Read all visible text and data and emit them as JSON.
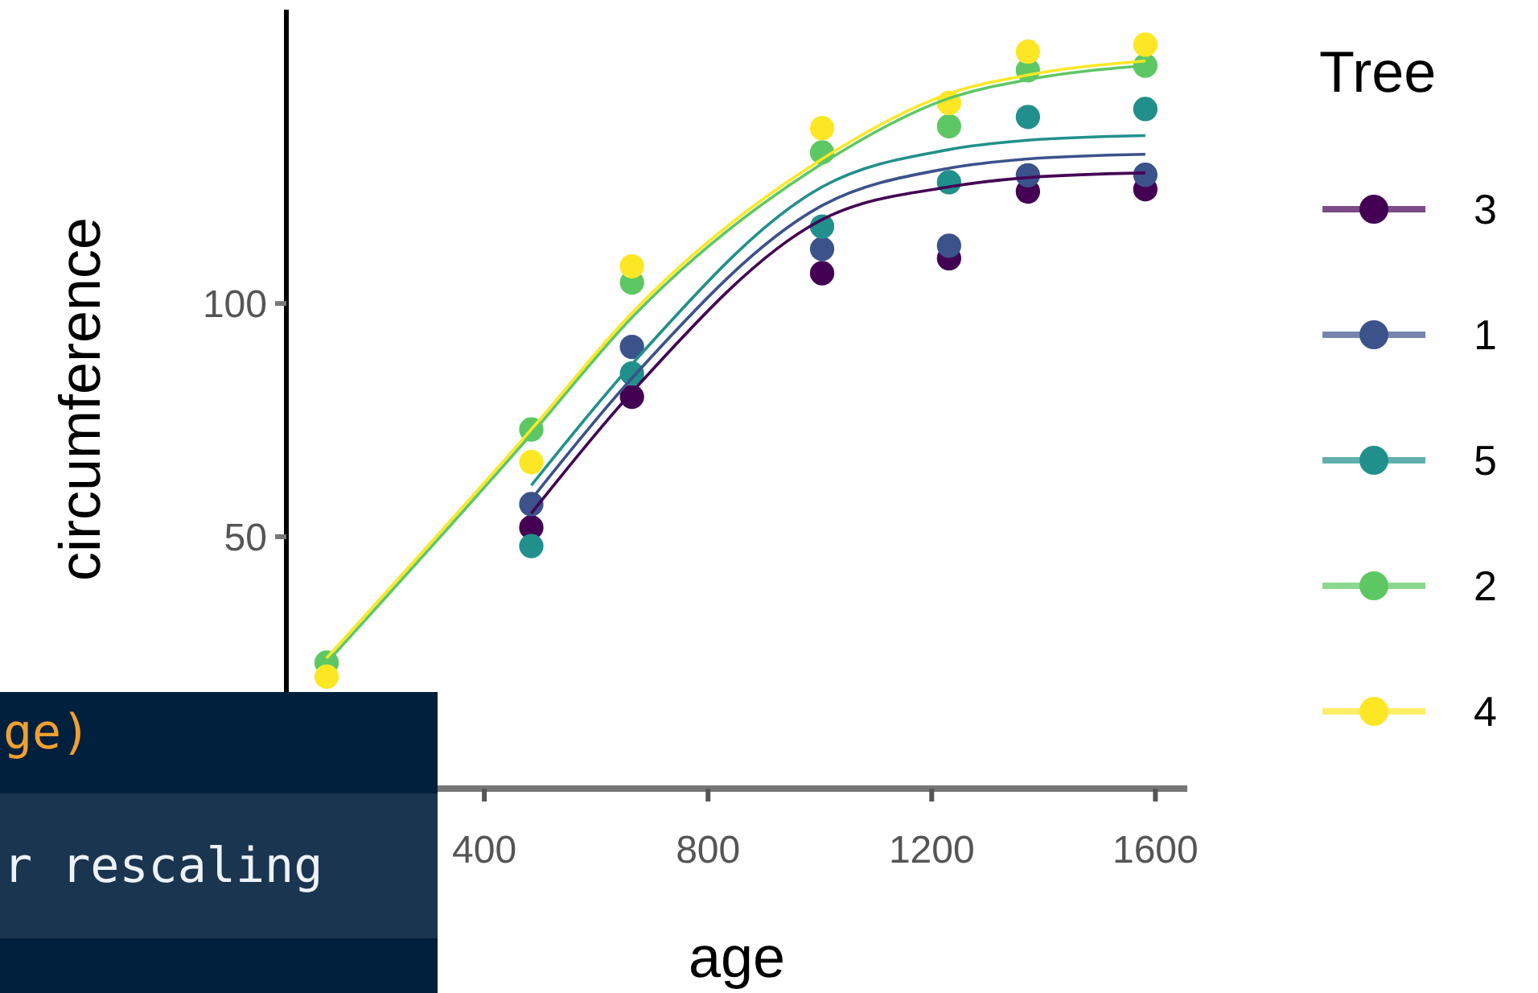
{
  "chart_data": {
    "type": "scatter",
    "xlabel": "age",
    "ylabel": "circumference",
    "legend_title": "Tree",
    "legend": "right",
    "grid": false,
    "xlim": [
      46,
      1657
    ],
    "xticks": [
      400,
      800,
      1200,
      1600
    ],
    "ylim": [
      -4,
      163
    ],
    "yticks": [
      50,
      100
    ],
    "x": [
      118,
      484,
      664,
      1004,
      1231,
      1372,
      1582
    ],
    "series": [
      {
        "name": "3",
        "marker": "circle",
        "color": "#440154",
        "values": [
          null,
          52,
          80,
          106.5,
          109.7,
          124,
          124.5
        ]
      },
      {
        "name": "1",
        "marker": "circle",
        "color": "#3b528b",
        "values": [
          null,
          57,
          90.7,
          111.7,
          112.4,
          127.5,
          127.6
        ]
      },
      {
        "name": "5",
        "marker": "circle",
        "color": "#21908c",
        "values": [
          null,
          48,
          85,
          116.5,
          126,
          140,
          141.7
        ]
      },
      {
        "name": "2",
        "marker": "circle",
        "color": "#5dc863",
        "values": [
          23,
          73,
          104.5,
          132.4,
          138,
          150,
          151
        ]
      },
      {
        "name": "4",
        "marker": "circle",
        "color": "#fde725",
        "values": [
          20,
          66,
          108,
          137.6,
          143,
          154,
          155.5
        ]
      },
      {
        "type": "line",
        "color": "#440154",
        "values": [
          null,
          55,
          81,
          118,
          125,
          127,
          128
        ]
      },
      {
        "type": "line",
        "color": "#3b528b",
        "values": [
          null,
          58,
          84,
          121,
          129,
          131,
          132
        ]
      },
      {
        "type": "line",
        "color": "#21908c",
        "values": [
          null,
          61,
          87,
          125,
          133,
          135,
          136
        ]
      },
      {
        "type": "line",
        "color": "#5dc863",
        "values": [
          23,
          72,
          97,
          130,
          144,
          148,
          151
        ]
      },
      {
        "type": "line",
        "color": "#fde725",
        "values": [
          24,
          73,
          98,
          131,
          145,
          149,
          152
        ]
      }
    ],
    "annotations": [
      "ge)",
      "r rescaling"
    ]
  }
}
